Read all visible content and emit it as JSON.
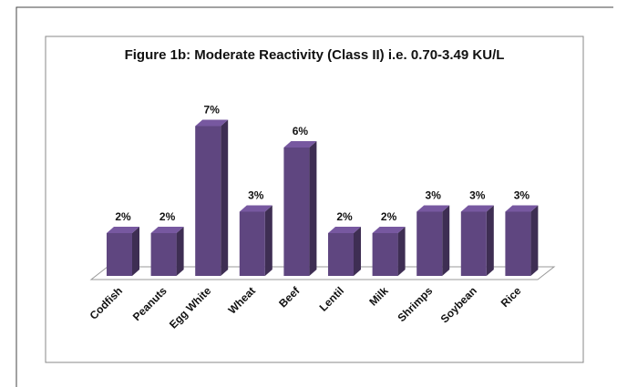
{
  "chart_data": {
    "type": "bar3d",
    "title": "Figure 1b: Moderate Reactivity (Class II) i.e. 0.70-3.49 KU/L",
    "categories": [
      "Codfish",
      "Peanuts",
      "Egg White",
      "Wheat",
      "Beef",
      "Lentil",
      "Milk",
      "Shrimps",
      "Soybean",
      "Rice"
    ],
    "values": [
      2,
      2,
      7,
      3,
      6,
      2,
      2,
      3,
      3,
      3
    ],
    "value_labels": [
      "2%",
      "2%",
      "7%",
      "3%",
      "6%",
      "2%",
      "2%",
      "3%",
      "3%",
      "3%"
    ],
    "color": "#5f4680"
  }
}
